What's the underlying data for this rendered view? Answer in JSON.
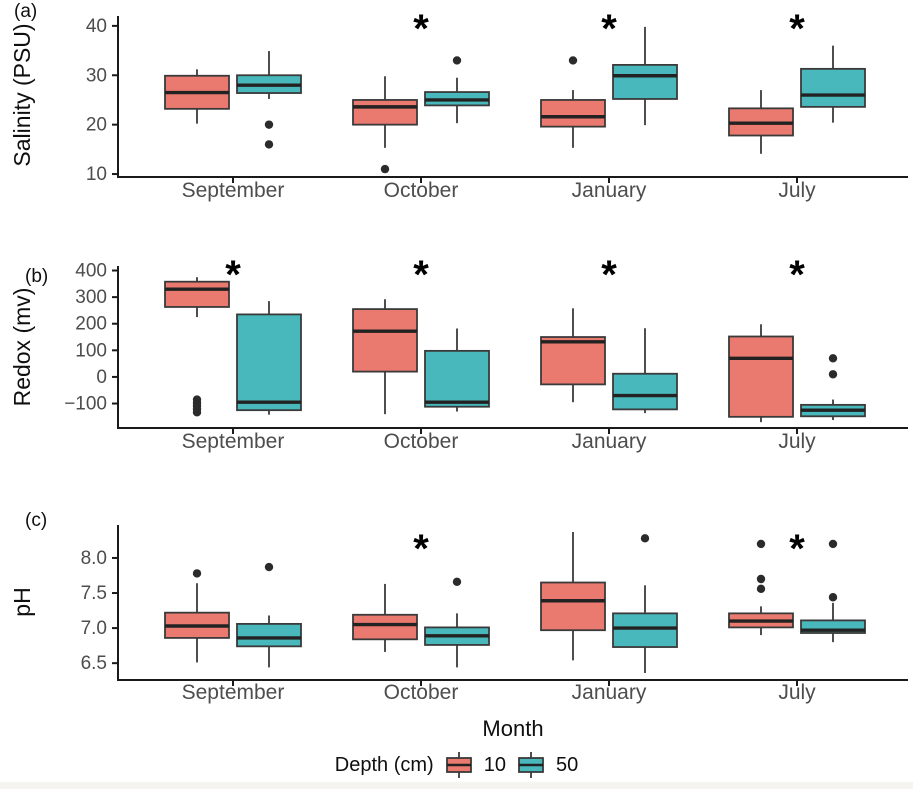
{
  "figure": {
    "xlabel": "Month",
    "legend": {
      "title": "Depth (cm)",
      "items": [
        {
          "label": "10",
          "color_key": "depth10"
        },
        {
          "label": "50",
          "color_key": "depth50"
        }
      ]
    },
    "colors": {
      "depth10": "#EA7A70",
      "depth50": "#49B8BC",
      "box_border": "#3a3a3a",
      "median": "#222222",
      "axis": "#1a1a1a",
      "tick_text": "#4d4d4d",
      "outlier": "#2b2b2b",
      "star": "#000000"
    }
  },
  "chart_data": [
    {
      "type": "boxplot",
      "panel_label": "(a)",
      "ylabel": "Salinity (PSU)",
      "ylim": [
        9.4,
        42.0
      ],
      "yticks": [
        {
          "v": 40,
          "label": "40"
        },
        {
          "v": 30,
          "label": "30"
        },
        {
          "v": 20,
          "label": "20"
        },
        {
          "v": 10,
          "label": "10"
        }
      ],
      "categories": [
        "September",
        "October",
        "January",
        "July"
      ],
      "significance_stars": [
        "October",
        "January",
        "July"
      ],
      "series": [
        {
          "name": "10",
          "color_key": "depth10",
          "boxes": [
            {
              "lo": 20.2,
              "q1": 23.2,
              "med": 26.5,
              "q3": 29.9,
              "hi": 31.2,
              "outliers": []
            },
            {
              "lo": 15.3,
              "q1": 20.0,
              "med": 23.6,
              "q3": 25.0,
              "hi": 29.8,
              "outliers": [
                11
              ]
            },
            {
              "lo": 15.3,
              "q1": 19.6,
              "med": 21.6,
              "q3": 25.0,
              "hi": 27.0,
              "outliers": [
                33
              ]
            },
            {
              "lo": 14.1,
              "q1": 17.8,
              "med": 20.3,
              "q3": 23.3,
              "hi": 27.0,
              "outliers": []
            }
          ]
        },
        {
          "name": "50",
          "color_key": "depth50",
          "boxes": [
            {
              "lo": 25.2,
              "q1": 26.4,
              "med": 28.0,
              "q3": 30.0,
              "hi": 34.9,
              "outliers": [
                20,
                16
              ]
            },
            {
              "lo": 20.3,
              "q1": 23.9,
              "med": 25.0,
              "q3": 26.6,
              "hi": 29.5,
              "outliers": [
                33
              ]
            },
            {
              "lo": 19.9,
              "q1": 25.2,
              "med": 29.9,
              "q3": 32.1,
              "hi": 39.8,
              "outliers": []
            },
            {
              "lo": 20.4,
              "q1": 23.6,
              "med": 26.0,
              "q3": 31.3,
              "hi": 36.0,
              "outliers": []
            }
          ]
        }
      ]
    },
    {
      "type": "boxplot",
      "panel_label": "(b)",
      "ylabel": "Redox (mv)",
      "ylim": [
        -192,
        417
      ],
      "yticks": [
        {
          "v": 400,
          "label": "400"
        },
        {
          "v": 300,
          "label": "300"
        },
        {
          "v": 200,
          "label": "200"
        },
        {
          "v": 100,
          "label": "100"
        },
        {
          "v": 0,
          "label": "0"
        },
        {
          "v": -100,
          "label": "−100"
        }
      ],
      "categories": [
        "September",
        "October",
        "January",
        "July"
      ],
      "significance_stars": [
        "September",
        "October",
        "January",
        "July"
      ],
      "series": [
        {
          "name": "10",
          "color_key": "depth10",
          "boxes": [
            {
              "lo": 225,
              "q1": 263,
              "med": 330,
              "q3": 358,
              "hi": 375,
              "outliers": [
                -85,
                -97,
                -109,
                -121,
                -133
              ]
            },
            {
              "lo": -140,
              "q1": 20,
              "med": 172,
              "q3": 255,
              "hi": 292,
              "outliers": []
            },
            {
              "lo": -95,
              "q1": -28,
              "med": 132,
              "q3": 150,
              "hi": 258,
              "outliers": []
            },
            {
              "lo": -170,
              "q1": -150,
              "med": 70,
              "q3": 152,
              "hi": 198,
              "outliers": []
            }
          ]
        },
        {
          "name": "50",
          "color_key": "depth50",
          "boxes": [
            {
              "lo": -142,
              "q1": -125,
              "med": -95,
              "q3": 235,
              "hi": 285,
              "outliers": []
            },
            {
              "lo": -130,
              "q1": -112,
              "med": -95,
              "q3": 98,
              "hi": 182,
              "outliers": []
            },
            {
              "lo": -136,
              "q1": -122,
              "med": -70,
              "q3": 12,
              "hi": 183,
              "outliers": []
            },
            {
              "lo": -162,
              "q1": -148,
              "med": -125,
              "q3": -105,
              "hi": -85,
              "outliers": [
                70,
                10
              ]
            }
          ]
        }
      ]
    },
    {
      "type": "boxplot",
      "panel_label": "(c)",
      "ylabel": "pH",
      "ylim": [
        6.26,
        8.47
      ],
      "yticks": [
        {
          "v": 8.0,
          "label": "8.0"
        },
        {
          "v": 7.5,
          "label": "7.5"
        },
        {
          "v": 7.0,
          "label": "7.0"
        },
        {
          "v": 6.5,
          "label": "6.5"
        }
      ],
      "categories": [
        "September",
        "October",
        "January",
        "July"
      ],
      "significance_stars": [
        "October",
        "July"
      ],
      "series": [
        {
          "name": "10",
          "color_key": "depth10",
          "boxes": [
            {
              "lo": 6.51,
              "q1": 6.86,
              "med": 7.03,
              "q3": 7.22,
              "hi": 7.64,
              "outliers": [
                7.78
              ]
            },
            {
              "lo": 6.66,
              "q1": 6.84,
              "med": 7.05,
              "q3": 7.19,
              "hi": 7.63,
              "outliers": []
            },
            {
              "lo": 6.54,
              "q1": 6.97,
              "med": 7.39,
              "q3": 7.65,
              "hi": 8.37,
              "outliers": []
            },
            {
              "lo": 6.9,
              "q1": 7.01,
              "med": 7.1,
              "q3": 7.21,
              "hi": 7.31,
              "outliers": [
                8.2,
                7.7,
                7.56
              ]
            }
          ]
        },
        {
          "name": "50",
          "color_key": "depth50",
          "boxes": [
            {
              "lo": 6.44,
              "q1": 6.74,
              "med": 6.86,
              "q3": 7.06,
              "hi": 7.18,
              "outliers": [
                7.87
              ]
            },
            {
              "lo": 6.44,
              "q1": 6.76,
              "med": 6.89,
              "q3": 7.01,
              "hi": 7.21,
              "outliers": [
                7.66
              ]
            },
            {
              "lo": 6.36,
              "q1": 6.73,
              "med": 7.0,
              "q3": 7.21,
              "hi": 7.61,
              "outliers": [
                8.28
              ]
            },
            {
              "lo": 6.8,
              "q1": 6.93,
              "med": 6.97,
              "q3": 7.11,
              "hi": 7.36,
              "outliers": [
                8.2,
                7.44
              ]
            }
          ]
        }
      ]
    }
  ]
}
